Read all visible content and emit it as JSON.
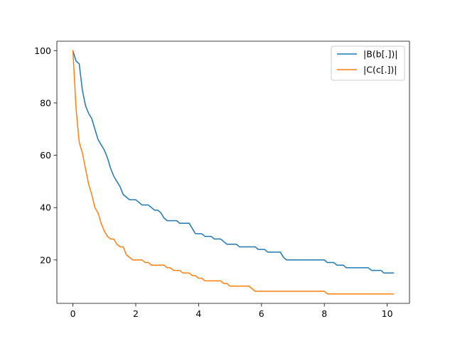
{
  "chart_data": {
    "type": "line",
    "title": "",
    "xlabel": "",
    "ylabel": "",
    "xlim": [
      -0.51,
      10.71
    ],
    "ylim": [
      3.4,
      103.6
    ],
    "xticks": [
      0,
      2,
      4,
      6,
      8,
      10
    ],
    "yticks": [
      20,
      40,
      60,
      80,
      100
    ],
    "grid": false,
    "legend_position": "top-right",
    "series": [
      {
        "name": "|B(b[.])|",
        "color": "#1f77b4",
        "points": [
          [
            0,
            100
          ],
          [
            0.1,
            96
          ],
          [
            0.2,
            95
          ],
          [
            0.3,
            85
          ],
          [
            0.4,
            79
          ],
          [
            0.5,
            76
          ],
          [
            0.6,
            74
          ],
          [
            0.7,
            70
          ],
          [
            0.8,
            66
          ],
          [
            0.9,
            64
          ],
          [
            1.0,
            62
          ],
          [
            1.1,
            59
          ],
          [
            1.2,
            55
          ],
          [
            1.3,
            52
          ],
          [
            1.4,
            50
          ],
          [
            1.5,
            48
          ],
          [
            1.6,
            45
          ],
          [
            1.7,
            44
          ],
          [
            1.8,
            43
          ],
          [
            2.0,
            43
          ],
          [
            2.1,
            42
          ],
          [
            2.2,
            41
          ],
          [
            2.4,
            41
          ],
          [
            2.5,
            40
          ],
          [
            2.6,
            39
          ],
          [
            2.7,
            39
          ],
          [
            2.8,
            38
          ],
          [
            2.9,
            36
          ],
          [
            3.0,
            35
          ],
          [
            3.3,
            35
          ],
          [
            3.4,
            34
          ],
          [
            3.7,
            34
          ],
          [
            3.8,
            32
          ],
          [
            3.9,
            30
          ],
          [
            4.1,
            30
          ],
          [
            4.2,
            29
          ],
          [
            4.4,
            29
          ],
          [
            4.5,
            28
          ],
          [
            4.7,
            28
          ],
          [
            4.8,
            27
          ],
          [
            4.9,
            26
          ],
          [
            5.2,
            26
          ],
          [
            5.3,
            25
          ],
          [
            5.8,
            25
          ],
          [
            5.9,
            24
          ],
          [
            6.1,
            24
          ],
          [
            6.2,
            23
          ],
          [
            6.6,
            23
          ],
          [
            6.7,
            21
          ],
          [
            6.8,
            20
          ],
          [
            8.0,
            20
          ],
          [
            8.1,
            19
          ],
          [
            8.3,
            19
          ],
          [
            8.4,
            18
          ],
          [
            8.6,
            18
          ],
          [
            8.7,
            17
          ],
          [
            9.4,
            17
          ],
          [
            9.5,
            16
          ],
          [
            9.8,
            16
          ],
          [
            9.9,
            15
          ],
          [
            10.2,
            15
          ]
        ]
      },
      {
        "name": "|C(c[.])|",
        "color": "#ff7f0e",
        "points": [
          [
            0,
            100
          ],
          [
            0.1,
            78
          ],
          [
            0.2,
            65
          ],
          [
            0.3,
            61
          ],
          [
            0.4,
            55
          ],
          [
            0.5,
            49
          ],
          [
            0.6,
            45
          ],
          [
            0.7,
            40
          ],
          [
            0.8,
            38
          ],
          [
            0.9,
            34
          ],
          [
            1.0,
            31
          ],
          [
            1.1,
            29
          ],
          [
            1.2,
            28
          ],
          [
            1.3,
            28
          ],
          [
            1.4,
            26
          ],
          [
            1.5,
            25
          ],
          [
            1.6,
            25
          ],
          [
            1.7,
            22
          ],
          [
            1.8,
            21
          ],
          [
            1.9,
            20
          ],
          [
            2.2,
            20
          ],
          [
            2.3,
            19
          ],
          [
            2.4,
            19
          ],
          [
            2.5,
            18
          ],
          [
            2.9,
            18
          ],
          [
            3.0,
            17
          ],
          [
            3.1,
            17
          ],
          [
            3.2,
            16
          ],
          [
            3.4,
            16
          ],
          [
            3.5,
            15
          ],
          [
            3.6,
            15
          ],
          [
            3.7,
            15
          ],
          [
            3.8,
            14
          ],
          [
            3.9,
            14
          ],
          [
            4.0,
            13
          ],
          [
            4.1,
            13
          ],
          [
            4.2,
            12
          ],
          [
            4.7,
            12
          ],
          [
            4.8,
            11
          ],
          [
            4.9,
            11
          ],
          [
            5.0,
            10
          ],
          [
            5.6,
            10
          ],
          [
            5.7,
            9
          ],
          [
            5.8,
            8
          ],
          [
            8.0,
            8
          ],
          [
            8.1,
            7
          ],
          [
            10.2,
            7
          ]
        ]
      }
    ]
  }
}
